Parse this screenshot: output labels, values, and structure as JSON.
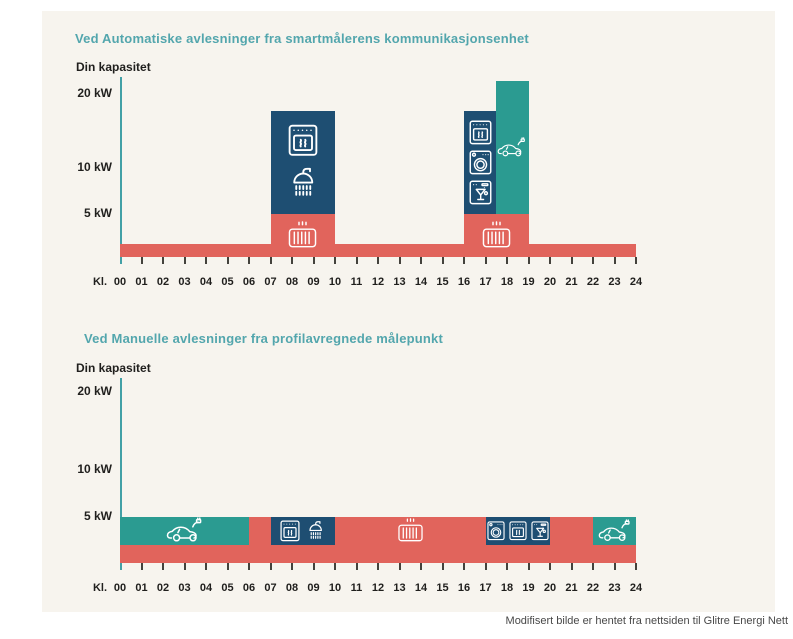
{
  "caption": "Modifisert bilde er hentet fra nettsiden til Glitre Energi Nett",
  "colors": {
    "background": "#ffffff",
    "panel": "#f7f4ee",
    "red": "#e1645c",
    "navy": "#1e4e72",
    "teal": "#2b9b91",
    "title": "#53a6ad",
    "axis": "#43a0a6",
    "text": "#201f1d",
    "caption_color": "#484848"
  },
  "chart_data": [
    {
      "type": "bar",
      "title": "Ved Automatiske avlesninger fra smartmålerens kommunikasjonsenhet",
      "ylabel": "Din kapasitet",
      "xlabel": "Kl.",
      "ylim": [
        0,
        22
      ],
      "y_ticks": [
        {
          "label": "20 kW",
          "kw": 20
        },
        {
          "label": "10 kW",
          "kw": 10
        },
        {
          "label": "5 kW",
          "kw": 5
        }
      ],
      "x_ticks": [
        "00",
        "01",
        "02",
        "03",
        "04",
        "05",
        "06",
        "07",
        "08",
        "09",
        "10",
        "11",
        "12",
        "13",
        "14",
        "15",
        "16",
        "17",
        "18",
        "19",
        "20",
        "21",
        "22",
        "23",
        "24"
      ],
      "segments": [
        {
          "name": "base-load",
          "color": "red",
          "from_hour": 0,
          "to_hour": 24,
          "kw_from": 0,
          "kw_to": 1.5,
          "icons": [],
          "icon_layout": "none"
        },
        {
          "name": "heating-morning",
          "color": "red",
          "from_hour": 7,
          "to_hour": 10,
          "kw_from": 0,
          "kw_to": 5,
          "icons": [
            "radiator"
          ],
          "icon_layout": "single"
        },
        {
          "name": "oven-shower-morning",
          "color": "navy",
          "from_hour": 7,
          "to_hour": 10,
          "kw_from": 5,
          "kw_to": 17,
          "icons": [
            "oven",
            "shower"
          ],
          "icon_layout": "column"
        },
        {
          "name": "heating-evening",
          "color": "red",
          "from_hour": 16,
          "to_hour": 19,
          "kw_from": 0,
          "kw_to": 5,
          "icons": [
            "radiator"
          ],
          "icon_layout": "single"
        },
        {
          "name": "appliances-evening",
          "color": "navy",
          "from_hour": 16,
          "to_hour": 17.5,
          "kw_from": 5,
          "kw_to": 17,
          "icons": [
            "oven",
            "washer",
            "dishwasher"
          ],
          "icon_layout": "column"
        },
        {
          "name": "ev-charging-evening",
          "color": "teal",
          "from_hour": 17.5,
          "to_hour": 19,
          "kw_from": 5,
          "kw_to": 20.5,
          "icons": [
            "ev-car"
          ],
          "icon_layout": "single"
        }
      ]
    },
    {
      "type": "bar",
      "title": "Ved Manuelle avlesninger fra profilavregnede målepunkt",
      "ylabel": "Din kapasitet",
      "xlabel": "Kl.",
      "ylim": [
        0,
        22
      ],
      "y_ticks": [
        {
          "label": "20 kW",
          "kw": 20
        },
        {
          "label": "10 kW",
          "kw": 10
        },
        {
          "label": "5 kW",
          "kw": 5
        }
      ],
      "x_ticks": [
        "00",
        "01",
        "02",
        "03",
        "04",
        "05",
        "06",
        "07",
        "08",
        "09",
        "10",
        "11",
        "12",
        "13",
        "14",
        "15",
        "16",
        "17",
        "18",
        "19",
        "20",
        "21",
        "22",
        "23",
        "24"
      ],
      "segments": [
        {
          "name": "base-load",
          "color": "red",
          "from_hour": 0,
          "to_hour": 24,
          "kw_from": 0,
          "kw_to": 5,
          "icons": [],
          "icon_layout": "none"
        },
        {
          "name": "ev-charging-night",
          "color": "teal",
          "from_hour": 0,
          "to_hour": 6,
          "kw_from": 2,
          "kw_to": 5,
          "icons": [
            "ev-car"
          ],
          "icon_layout": "single"
        },
        {
          "name": "oven-shower-morning",
          "color": "navy",
          "from_hour": 7,
          "to_hour": 10,
          "kw_from": 2,
          "kw_to": 5,
          "icons": [
            "oven",
            "shower"
          ],
          "icon_layout": "row"
        },
        {
          "name": "heating-midday",
          "color": "none",
          "from_hour": 12.6,
          "to_hour": 14.4,
          "kw_from": 2,
          "kw_to": 5,
          "icons": [
            "radiator"
          ],
          "icon_layout": "single"
        },
        {
          "name": "appliances-evening",
          "color": "navy",
          "from_hour": 17,
          "to_hour": 20,
          "kw_from": 2,
          "kw_to": 5,
          "icons": [
            "washer",
            "oven",
            "dishwasher"
          ],
          "icon_layout": "row"
        },
        {
          "name": "ev-charging-evening",
          "color": "teal",
          "from_hour": 22,
          "to_hour": 24,
          "kw_from": 2,
          "kw_to": 5,
          "icons": [
            "ev-car"
          ],
          "icon_layout": "single"
        }
      ]
    }
  ]
}
